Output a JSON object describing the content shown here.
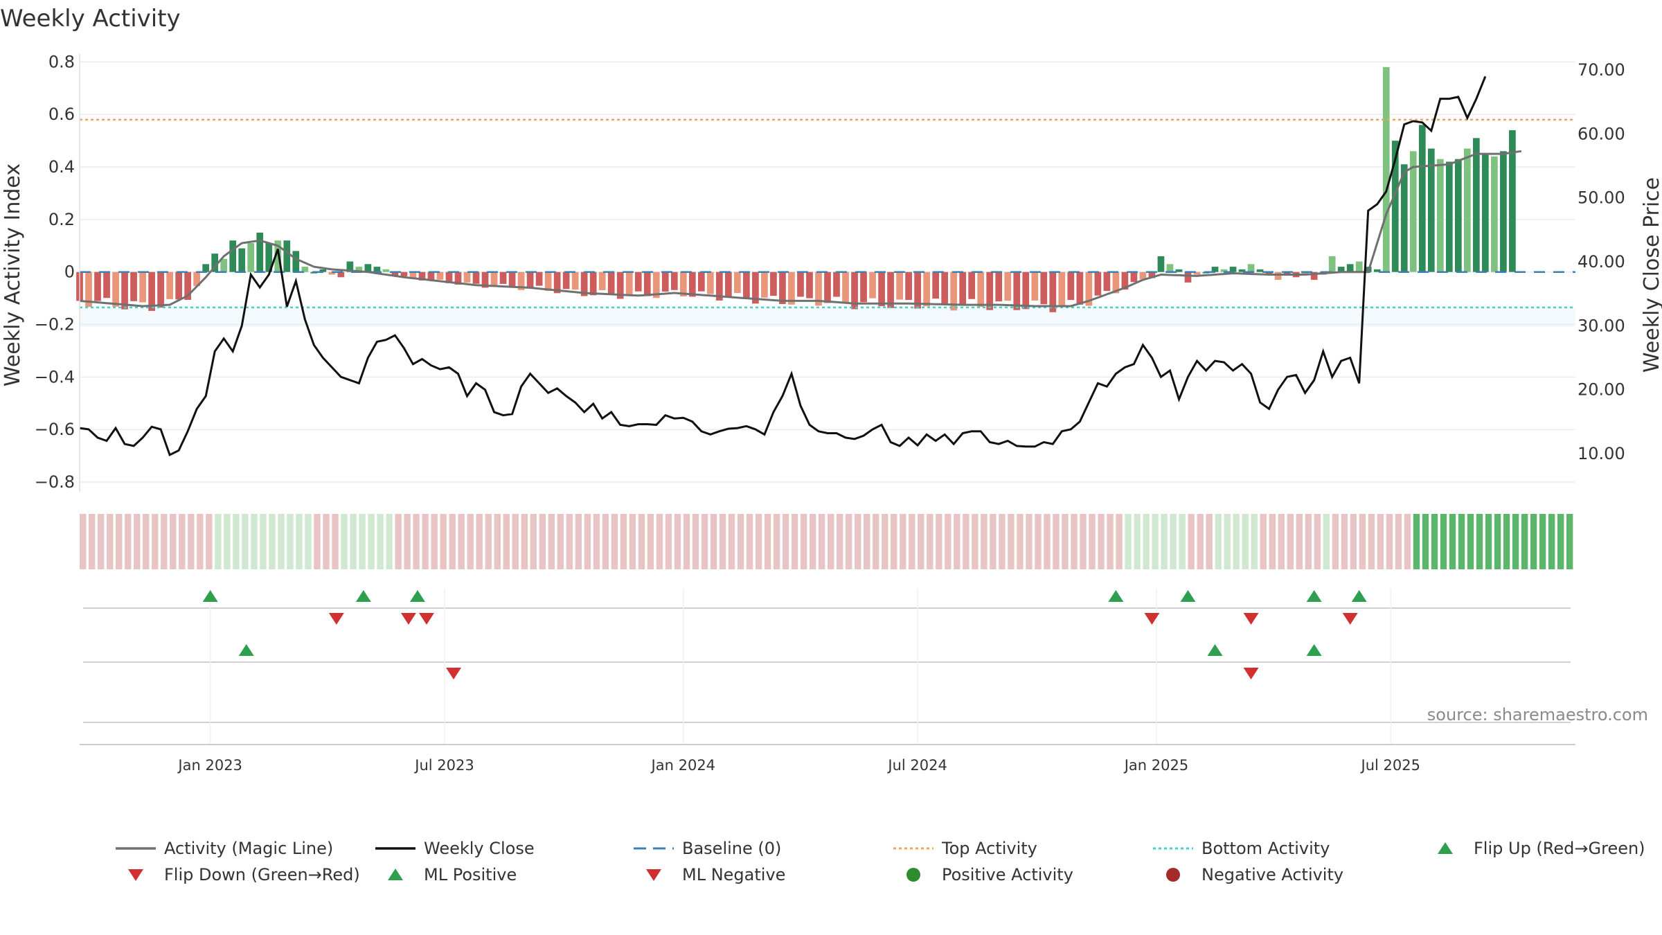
{
  "chart_data": {
    "type": "bar",
    "title": "Weekly Activity",
    "ylabel": "Weekly Activity Index",
    "y2label": "Weekly Close Price",
    "ylim": [
      -0.85,
      0.83
    ],
    "y2lim": [
      3.5,
      72.5
    ],
    "yticks": [
      {
        "v": 0.8,
        "label": "0.8"
      },
      {
        "v": 0.6,
        "label": "0.6"
      },
      {
        "v": 0.4,
        "label": "0.4"
      },
      {
        "v": 0.2,
        "label": "0.2"
      },
      {
        "v": 0,
        "label": "0"
      },
      {
        "v": -0.2,
        "label": "−0.2"
      },
      {
        "v": -0.4,
        "label": "−0.4"
      },
      {
        "v": -0.6,
        "label": "−0.6"
      },
      {
        "v": -0.8,
        "label": "−0.8"
      }
    ],
    "y2ticks": [
      {
        "v": 70,
        "label": "70.00"
      },
      {
        "v": 60,
        "label": "60.00"
      },
      {
        "v": 50,
        "label": "50.00"
      },
      {
        "v": 40,
        "label": "40.00"
      },
      {
        "v": 30,
        "label": "30.00"
      },
      {
        "v": 20,
        "label": "20.00"
      },
      {
        "v": 10,
        "label": "10.00"
      }
    ],
    "x_range_weeks": [
      0,
      166
    ],
    "xticks": [
      {
        "w": 14.5,
        "label": "Jan 2023"
      },
      {
        "w": 40.5,
        "label": "Jul 2023"
      },
      {
        "w": 67,
        "label": "Jan 2024"
      },
      {
        "w": 93,
        "label": "Jul 2024"
      },
      {
        "w": 119.5,
        "label": "Jan 2025"
      },
      {
        "w": 145.5,
        "label": "Jul 2025"
      }
    ],
    "top_activity": 0.58,
    "bottom_activity": -0.135,
    "baseline": 0,
    "activity_keys": [
      [
        0,
        -0.11
      ],
      [
        7,
        -0.13
      ],
      [
        10,
        -0.125
      ],
      [
        12,
        -0.09
      ],
      [
        14,
        -0.02
      ],
      [
        16,
        0.06
      ],
      [
        18,
        0.11
      ],
      [
        20,
        0.12
      ],
      [
        22,
        0.1
      ],
      [
        24,
        0.05
      ],
      [
        26,
        0.02
      ],
      [
        28,
        0.01
      ],
      [
        32,
        0.0
      ],
      [
        36,
        -0.02
      ],
      [
        44,
        -0.05
      ],
      [
        50,
        -0.06
      ],
      [
        56,
        -0.08
      ],
      [
        62,
        -0.09
      ],
      [
        66,
        -0.08
      ],
      [
        70,
        -0.09
      ],
      [
        74,
        -0.1
      ],
      [
        78,
        -0.11
      ],
      [
        82,
        -0.11
      ],
      [
        86,
        -0.12
      ],
      [
        92,
        -0.12
      ],
      [
        98,
        -0.125
      ],
      [
        102,
        -0.125
      ],
      [
        106,
        -0.13
      ],
      [
        110,
        -0.13
      ],
      [
        112,
        -0.11
      ],
      [
        116,
        -0.06
      ],
      [
        118,
        -0.03
      ],
      [
        120,
        -0.01
      ],
      [
        124,
        -0.015
      ],
      [
        128,
        -0.005
      ],
      [
        132,
        -0.01
      ],
      [
        136,
        -0.01
      ],
      [
        140,
        0.0
      ],
      [
        143,
        0.0
      ],
      [
        145,
        0.22
      ],
      [
        147,
        0.38
      ],
      [
        148,
        0.4
      ],
      [
        152,
        0.41
      ],
      [
        155,
        0.45
      ],
      [
        158,
        0.45
      ],
      [
        160,
        0.46
      ]
    ],
    "bar_overrides": [
      [
        14,
        0.03
      ],
      [
        15,
        0.07
      ],
      [
        16,
        0.05
      ],
      [
        17,
        0.12
      ],
      [
        18,
        0.09
      ],
      [
        19,
        0.11
      ],
      [
        20,
        0.15
      ],
      [
        21,
        0.11
      ],
      [
        22,
        0.12
      ],
      [
        23,
        0.12
      ],
      [
        24,
        0.08
      ],
      [
        25,
        0.02
      ],
      [
        26,
        0.0
      ],
      [
        27,
        0.01
      ],
      [
        28,
        -0.01
      ],
      [
        29,
        -0.02
      ],
      [
        30,
        0.04
      ],
      [
        31,
        0.02
      ],
      [
        32,
        0.03
      ],
      [
        33,
        0.02
      ],
      [
        34,
        0.01
      ],
      [
        120,
        0.06
      ],
      [
        121,
        0.03
      ],
      [
        122,
        0.01
      ],
      [
        123,
        -0.04
      ],
      [
        124,
        -0.01
      ],
      [
        125,
        0.0
      ],
      [
        126,
        0.02
      ],
      [
        127,
        0.01
      ],
      [
        128,
        0.02
      ],
      [
        129,
        0.01
      ],
      [
        130,
        0.03
      ],
      [
        131,
        0.01
      ],
      [
        132,
        -0.01
      ],
      [
        133,
        -0.03
      ],
      [
        134,
        -0.01
      ],
      [
        135,
        -0.02
      ],
      [
        136,
        -0.01
      ],
      [
        137,
        -0.03
      ],
      [
        138,
        -0.01
      ],
      [
        139,
        0.06
      ],
      [
        140,
        0.02
      ],
      [
        141,
        0.03
      ],
      [
        142,
        0.04
      ],
      [
        143,
        0.02
      ],
      [
        144,
        0.01
      ],
      [
        145,
        0.78
      ],
      [
        146,
        0.5
      ],
      [
        147,
        0.41
      ],
      [
        148,
        0.46
      ],
      [
        149,
        0.56
      ],
      [
        150,
        0.47
      ],
      [
        151,
        0.43
      ],
      [
        152,
        0.42
      ],
      [
        153,
        0.43
      ],
      [
        154,
        0.47
      ],
      [
        155,
        0.51
      ],
      [
        156,
        0.45
      ],
      [
        157,
        0.44
      ],
      [
        158,
        0.46
      ],
      [
        159,
        0.54
      ]
    ],
    "price_keys": [
      [
        0,
        14
      ],
      [
        1,
        13.8
      ],
      [
        2,
        12.5
      ],
      [
        3,
        12
      ],
      [
        4,
        14
      ],
      [
        5,
        11.5
      ],
      [
        6,
        11.2
      ],
      [
        7,
        12.5
      ],
      [
        8,
        14.2
      ],
      [
        9,
        13.8
      ],
      [
        10,
        9.8
      ],
      [
        11,
        10.5
      ],
      [
        12,
        13.5
      ],
      [
        13,
        17
      ],
      [
        14,
        19
      ],
      [
        15,
        26
      ],
      [
        16,
        28
      ],
      [
        17,
        26
      ],
      [
        18,
        30
      ],
      [
        19,
        38
      ],
      [
        20,
        36
      ],
      [
        21,
        38
      ],
      [
        22,
        42
      ],
      [
        23,
        33
      ],
      [
        24,
        37
      ],
      [
        25,
        31
      ],
      [
        26,
        27
      ],
      [
        27,
        25
      ],
      [
        28,
        23.5
      ],
      [
        29,
        22
      ],
      [
        30,
        21.5
      ],
      [
        31,
        21
      ],
      [
        32,
        25
      ],
      [
        33,
        27.5
      ],
      [
        34,
        27.8
      ],
      [
        35,
        28.5
      ],
      [
        36,
        26.5
      ],
      [
        37,
        24
      ],
      [
        38,
        24.8
      ],
      [
        39,
        23.8
      ],
      [
        40,
        23.2
      ],
      [
        41,
        23.5
      ],
      [
        42,
        22.5
      ],
      [
        43,
        19
      ],
      [
        44,
        21
      ],
      [
        45,
        20
      ],
      [
        46,
        16.5
      ],
      [
        47,
        16
      ],
      [
        48,
        16.2
      ],
      [
        49,
        20.5
      ],
      [
        50,
        22.5
      ],
      [
        51,
        21
      ],
      [
        52,
        19.5
      ],
      [
        53,
        20.2
      ],
      [
        54,
        19
      ],
      [
        55,
        18
      ],
      [
        56,
        16.5
      ],
      [
        57,
        17.8
      ],
      [
        58,
        15.5
      ],
      [
        59,
        16.5
      ],
      [
        60,
        14.5
      ],
      [
        61,
        14.3
      ],
      [
        62,
        14.6
      ],
      [
        63,
        14.6
      ],
      [
        64,
        14.5
      ],
      [
        65,
        16
      ],
      [
        66,
        15.5
      ],
      [
        67,
        15.6
      ],
      [
        68,
        15
      ],
      [
        69,
        13.5
      ],
      [
        70,
        13
      ],
      [
        71,
        13.5
      ],
      [
        72,
        13.9
      ],
      [
        73,
        14
      ],
      [
        74,
        14.3
      ],
      [
        75,
        13.8
      ],
      [
        76,
        13
      ],
      [
        77,
        16.5
      ],
      [
        78,
        19
      ],
      [
        79,
        22.5
      ],
      [
        80,
        17.5
      ],
      [
        81,
        14.5
      ],
      [
        82,
        13.5
      ],
      [
        83,
        13.2
      ],
      [
        84,
        13.2
      ],
      [
        85,
        12.5
      ],
      [
        86,
        12.3
      ],
      [
        87,
        12.8
      ],
      [
        88,
        13.8
      ],
      [
        89,
        14.5
      ],
      [
        90,
        11.8
      ],
      [
        91,
        11.2
      ],
      [
        92,
        12.5
      ],
      [
        93,
        11.3
      ],
      [
        94,
        13
      ],
      [
        95,
        12
      ],
      [
        96,
        13
      ],
      [
        97,
        11.5
      ],
      [
        98,
        13.2
      ],
      [
        99,
        13.5
      ],
      [
        100,
        13.5
      ],
      [
        101,
        11.8
      ],
      [
        102,
        11.5
      ],
      [
        103,
        12
      ],
      [
        104,
        11.2
      ],
      [
        105,
        11.1
      ],
      [
        106,
        11.1
      ],
      [
        107,
        11.8
      ],
      [
        108,
        11.5
      ],
      [
        109,
        13.5
      ],
      [
        110,
        13.8
      ],
      [
        111,
        15
      ],
      [
        112,
        18
      ],
      [
        113,
        21
      ],
      [
        114,
        20.5
      ],
      [
        115,
        22.5
      ],
      [
        116,
        23.5
      ],
      [
        117,
        24
      ],
      [
        118,
        27
      ],
      [
        119,
        25
      ],
      [
        120,
        22
      ],
      [
        121,
        23
      ],
      [
        122,
        18.5
      ],
      [
        123,
        22
      ],
      [
        124,
        24.5
      ],
      [
        125,
        23
      ],
      [
        126,
        24.5
      ],
      [
        127,
        24.3
      ],
      [
        128,
        23
      ],
      [
        129,
        24
      ],
      [
        130,
        22.5
      ],
      [
        131,
        18
      ],
      [
        132,
        17
      ],
      [
        133,
        20
      ],
      [
        134,
        22
      ],
      [
        135,
        22.3
      ],
      [
        136,
        19.5
      ],
      [
        137,
        21.5
      ],
      [
        138,
        26
      ],
      [
        139,
        22
      ],
      [
        140,
        24.5
      ],
      [
        141,
        25
      ],
      [
        142,
        21
      ],
      [
        143,
        48
      ],
      [
        144,
        49
      ],
      [
        145,
        51
      ],
      [
        146,
        56
      ],
      [
        147,
        61.5
      ],
      [
        148,
        62
      ],
      [
        149,
        61.8
      ],
      [
        150,
        60.5
      ],
      [
        151,
        65.5
      ],
      [
        152,
        65.5
      ],
      [
        153,
        65.8
      ],
      [
        154,
        62.5
      ],
      [
        155,
        65.5
      ],
      [
        156,
        69
      ]
    ],
    "state_bars": {
      "n": 166,
      "red_ranges": [
        [
          0,
          14
        ],
        [
          26,
          28
        ],
        [
          35,
          37
        ],
        [
          51,
          115
        ],
        [
          123,
          125
        ],
        [
          131,
          137
        ],
        [
          139,
          147
        ]
      ],
      "green_ranges": [
        [
          15,
          25
        ],
        [
          29,
          34
        ],
        [
          116,
          122
        ],
        [
          126,
          130
        ],
        [
          138,
          138
        ]
      ],
      "strong_green_from": 148
    },
    "signal_rows": [
      {
        "row": 1,
        "type": "up",
        "weeks": [
          14.5,
          31.5,
          37.5,
          115,
          123,
          137,
          142
        ]
      },
      {
        "row": 1,
        "type": "down",
        "weeks": [
          28.5,
          36.5,
          38.5,
          119,
          130,
          141
        ]
      },
      {
        "row": 2,
        "type": "up",
        "weeks": [
          18.5,
          126,
          137
        ]
      },
      {
        "row": 2,
        "type": "down",
        "weeks": [
          41.5,
          130
        ]
      }
    ],
    "source": "source: sharemaestro.com",
    "legend": [
      {
        "kind": "line",
        "label": "Activity (Magic Line)",
        "color": "#707070"
      },
      {
        "kind": "line",
        "label": "Weekly Close",
        "color": "#111111"
      },
      {
        "kind": "dash",
        "label": "Baseline (0)",
        "color": "#3b7fb5"
      },
      {
        "kind": "dot",
        "label": "Top Activity",
        "color": "#f0a55c"
      },
      {
        "kind": "dot",
        "label": "Bottom Activity",
        "color": "#40d0c8"
      },
      {
        "kind": "tri-up",
        "label": "Flip Up (Red→Green)",
        "color": "#2e9e4f"
      },
      {
        "kind": "tri-down",
        "label": "Flip Down (Green→Red)",
        "color": "#d03030"
      },
      {
        "kind": "tri-up",
        "label": "ML Positive",
        "color": "#2e9e4f"
      },
      {
        "kind": "tri-down",
        "label": "ML Negative",
        "color": "#d03030"
      },
      {
        "kind": "circle",
        "label": "Positive Activity",
        "color": "#2e8b2e"
      },
      {
        "kind": "circle",
        "label": "Negative Activity",
        "color": "#a52a2a"
      }
    ],
    "colors": {
      "bar_pos_dark": "#2e8b57",
      "bar_pos_light": "#7fc17f",
      "bar_neg_dark": "#cd5c5c",
      "bar_neg_light": "#e9967a",
      "state_red": "#e8c4c4",
      "state_green": "#cfe8cf",
      "state_strong": "#5bb56b",
      "magic": "#707070",
      "close": "#111111",
      "baseline": "#3b7fb5",
      "top": "#f0a55c",
      "bottom": "#40d0c8",
      "up": "#2e9e4f",
      "down": "#d03030"
    }
  }
}
